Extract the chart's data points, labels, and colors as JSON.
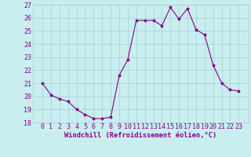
{
  "x": [
    0,
    1,
    2,
    3,
    4,
    5,
    6,
    7,
    8,
    9,
    10,
    11,
    12,
    13,
    14,
    15,
    16,
    17,
    18,
    19,
    20,
    21,
    22,
    23
  ],
  "y": [
    21.0,
    20.1,
    19.8,
    19.6,
    19.0,
    18.6,
    18.3,
    18.3,
    18.4,
    21.6,
    22.8,
    25.8,
    25.8,
    25.8,
    25.4,
    26.8,
    25.9,
    26.7,
    25.1,
    24.7,
    22.4,
    21.0,
    20.5,
    20.4
  ],
  "color": "#880088",
  "bg_color": "#c8eef0",
  "grid_color": "#a8ccd8",
  "xlabel": "Windchill (Refroidissement éolien,°C)",
  "ylim": [
    18,
    27
  ],
  "yticks": [
    18,
    19,
    20,
    21,
    22,
    23,
    24,
    25,
    26,
    27
  ],
  "xticks": [
    0,
    1,
    2,
    3,
    4,
    5,
    6,
    7,
    8,
    9,
    10,
    11,
    12,
    13,
    14,
    15,
    16,
    17,
    18,
    19,
    20,
    21,
    22,
    23
  ],
  "marker": "*",
  "markersize": 2.5,
  "linewidth": 0.8,
  "tick_fontsize": 6.0,
  "xlabel_fontsize": 6.2
}
